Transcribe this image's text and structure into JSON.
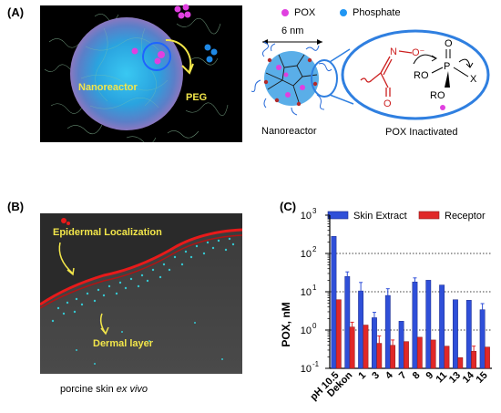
{
  "panel_a": {
    "label": "(A)",
    "nanoreactor_text": "Nanoreactor",
    "peg_text": "PEG",
    "scale_text": "6 nm",
    "legend": [
      {
        "name": "POX",
        "color": "#e040e0"
      },
      {
        "name": "Phosphate",
        "color": "#2196f3"
      }
    ],
    "nanoreactor_caption": "Nanoreactor",
    "pox_inactivated": "POX Inactivated",
    "chem": {
      "n_label": "N",
      "o_minus": "O⁻",
      "o_bottom": "O",
      "p_label": "P",
      "o_top": "O",
      "ro1": "RO",
      "ro2": "RO",
      "x_label": "X"
    }
  },
  "panel_b": {
    "label": "(B)",
    "epidermal_text": "Epidermal Localization",
    "dermal_text": "Dermal layer",
    "caption_prefix": "porcine skin ",
    "caption_italic": "ex vivo"
  },
  "chart_data": {
    "label": "(C)",
    "type": "bar",
    "ylabel": "POX, nM",
    "yscale": "log",
    "ylim": [
      0.1,
      1000
    ],
    "yticks": [
      {
        "value": 0.1,
        "base": "10",
        "exp": "-1"
      },
      {
        "value": 1,
        "base": "10",
        "exp": "0"
      },
      {
        "value": 10,
        "base": "10",
        "exp": "1"
      },
      {
        "value": 100,
        "base": "10",
        "exp": "2"
      },
      {
        "value": 1000,
        "base": "10",
        "exp": "3"
      }
    ],
    "grid": "dotted at 1, 10, 100",
    "legend_position": "top",
    "categories": [
      "pH 10.5",
      "Dekon",
      "1",
      "3",
      "4",
      "7",
      "8",
      "9",
      "11",
      "13",
      "14",
      "15"
    ],
    "series": [
      {
        "name": "Skin Extract",
        "color": "#2f4fd8",
        "values": [
          280,
          25,
          10.5,
          2.1,
          8,
          1.7,
          18,
          20,
          15,
          6.2,
          6,
          3.4
        ],
        "errors": [
          0,
          8,
          7,
          0.8,
          4,
          0,
          5,
          0,
          0,
          0,
          0,
          1.5
        ]
      },
      {
        "name": "Receptor",
        "color": "#e02828",
        "values": [
          6.2,
          1.2,
          1.35,
          0.45,
          0.4,
          0.5,
          0.65,
          0.55,
          0.38,
          0.19,
          0.28,
          0.36
        ],
        "errors": [
          0,
          0.4,
          0,
          0.25,
          0.15,
          0,
          0,
          0,
          0,
          0,
          0.1,
          0
        ]
      }
    ]
  }
}
